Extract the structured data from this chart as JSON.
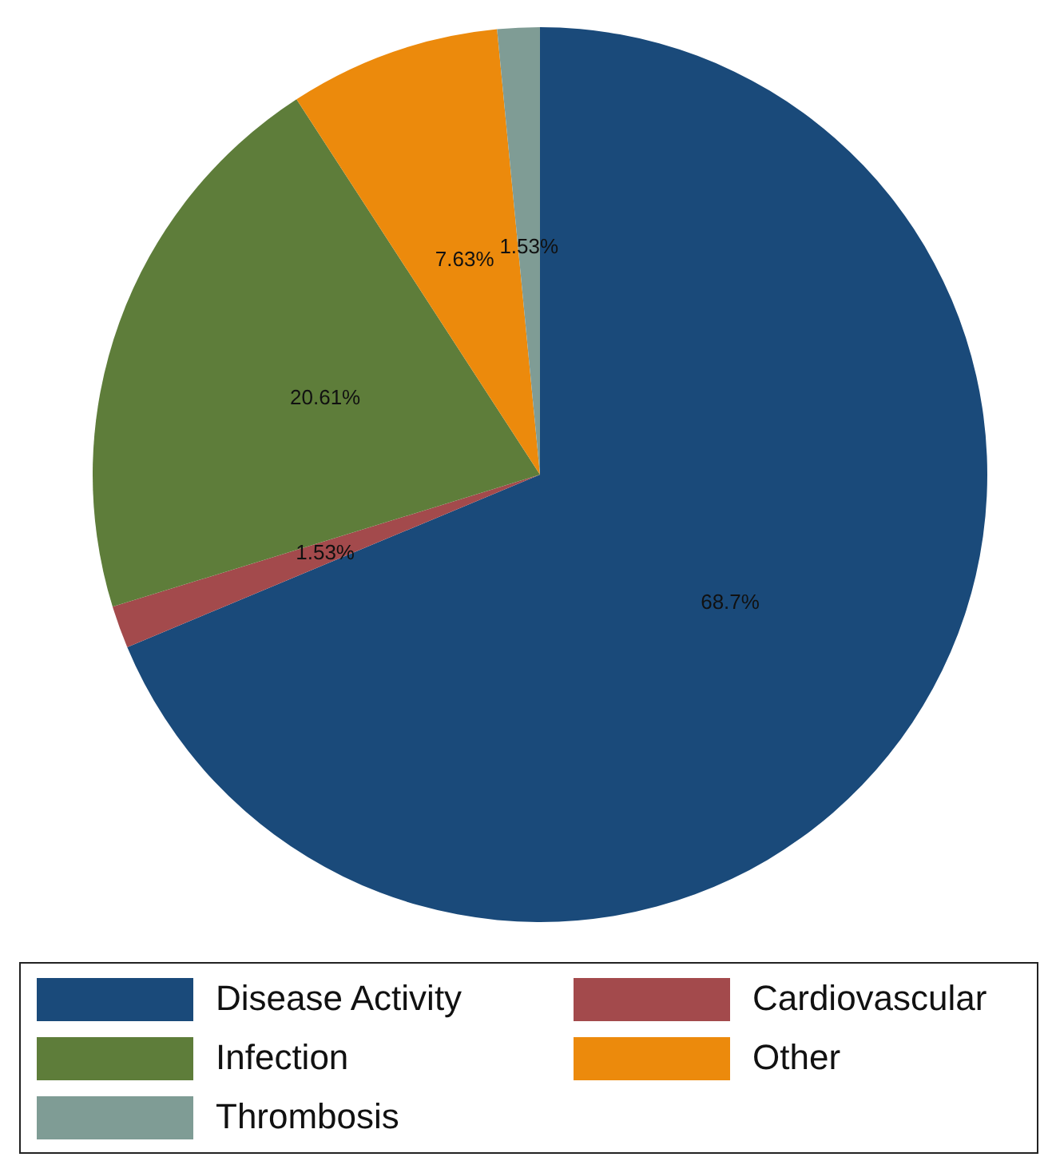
{
  "chart_data": {
    "type": "pie",
    "categories": [
      "Disease Activity",
      "Cardiovascular",
      "Infection",
      "Other",
      "Thrombosis"
    ],
    "values": [
      68.7,
      1.53,
      20.61,
      7.63,
      1.53
    ],
    "colors": [
      "#1a4a7a",
      "#a34a4c",
      "#5e7d3a",
      "#ec8a0c",
      "#7f9c95"
    ],
    "value_labels": [
      "68.7%",
      "1.53%",
      "20.61%",
      "7.63%",
      "1.53%"
    ],
    "legend": "bottom"
  }
}
